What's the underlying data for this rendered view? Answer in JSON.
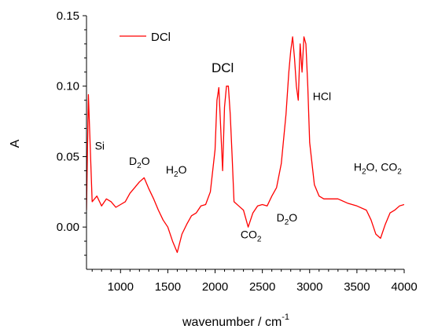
{
  "chart_data": {
    "type": "line",
    "xlabel": "wavenumber / cm",
    "xlabel_superscript": "-1",
    "ylabel": "A",
    "xlim": [
      640,
      4000
    ],
    "ylim": [
      -0.03,
      0.15
    ],
    "x_ticks": [
      1000,
      1500,
      2000,
      2500,
      3000,
      3500,
      4000
    ],
    "x_tick_labels": [
      "1000",
      "1500",
      "2000",
      "2500",
      "3000",
      "3500",
      "4000"
    ],
    "y_ticks": [
      0.0,
      0.05,
      0.1,
      0.15
    ],
    "y_tick_labels": [
      "0.00",
      "0.05",
      "0.10",
      "0.15"
    ],
    "grid": false,
    "legend_position": "top-left",
    "series": [
      {
        "name": "DCl",
        "color": "#ff0000",
        "x": [
          640,
          660,
          700,
          750,
          800,
          850,
          900,
          950,
          1000,
          1050,
          1100,
          1150,
          1200,
          1250,
          1300,
          1350,
          1400,
          1450,
          1500,
          1550,
          1600,
          1650,
          1700,
          1750,
          1800,
          1850,
          1900,
          1950,
          2000,
          2020,
          2040,
          2060,
          2080,
          2100,
          2120,
          2140,
          2160,
          2180,
          2200,
          2250,
          2300,
          2350,
          2400,
          2450,
          2500,
          2550,
          2600,
          2650,
          2700,
          2750,
          2780,
          2800,
          2820,
          2840,
          2860,
          2880,
          2900,
          2920,
          2940,
          2960,
          2980,
          3000,
          3050,
          3100,
          3150,
          3200,
          3300,
          3400,
          3500,
          3600,
          3650,
          3700,
          3750,
          3800,
          3850,
          3900,
          3950,
          4000
        ],
        "y": [
          0.012,
          0.094,
          0.018,
          0.022,
          0.015,
          0.02,
          0.018,
          0.014,
          0.016,
          0.018,
          0.024,
          0.028,
          0.032,
          0.035,
          0.027,
          0.02,
          0.012,
          0.005,
          0.0,
          -0.01,
          -0.018,
          -0.005,
          0.002,
          0.008,
          0.01,
          0.015,
          0.016,
          0.025,
          0.055,
          0.09,
          0.099,
          0.07,
          0.04,
          0.085,
          0.1,
          0.1,
          0.08,
          0.05,
          0.018,
          0.015,
          0.012,
          0.0,
          0.01,
          0.015,
          0.016,
          0.015,
          0.022,
          0.028,
          0.045,
          0.08,
          0.11,
          0.125,
          0.135,
          0.12,
          0.1,
          0.09,
          0.13,
          0.11,
          0.135,
          0.13,
          0.1,
          0.06,
          0.03,
          0.022,
          0.02,
          0.02,
          0.02,
          0.017,
          0.015,
          0.012,
          0.005,
          -0.005,
          -0.008,
          0.002,
          0.01,
          0.012,
          0.015,
          0.016
        ]
      }
    ],
    "annotations": [
      {
        "id": "si",
        "text": "Si",
        "x": 780,
        "y": 0.055
      },
      {
        "id": "d2o-left",
        "base": "D",
        "sub": "2",
        "rest": "O",
        "x": 1200,
        "y": 0.044
      },
      {
        "id": "h2o-left",
        "base": "H",
        "sub": "2",
        "rest": "O",
        "x": 1590,
        "y": 0.038
      },
      {
        "id": "dcl-peak",
        "text": "DCl",
        "x": 2080,
        "y": 0.11
      },
      {
        "id": "co2-dip",
        "base": "CO",
        "sub": "2",
        "rest": "",
        "x": 2380,
        "y": -0.008
      },
      {
        "id": "d2o-right",
        "base": "D",
        "sub": "2",
        "rest": "O",
        "x": 2760,
        "y": 0.004
      },
      {
        "id": "hcl",
        "text": "HCl",
        "x": 3130,
        "y": 0.09
      },
      {
        "id": "h2o-co2",
        "base": "H",
        "sub": "2",
        "rest": "O, CO",
        "sub2": "2",
        "x": 3720,
        "y": 0.04
      }
    ]
  }
}
